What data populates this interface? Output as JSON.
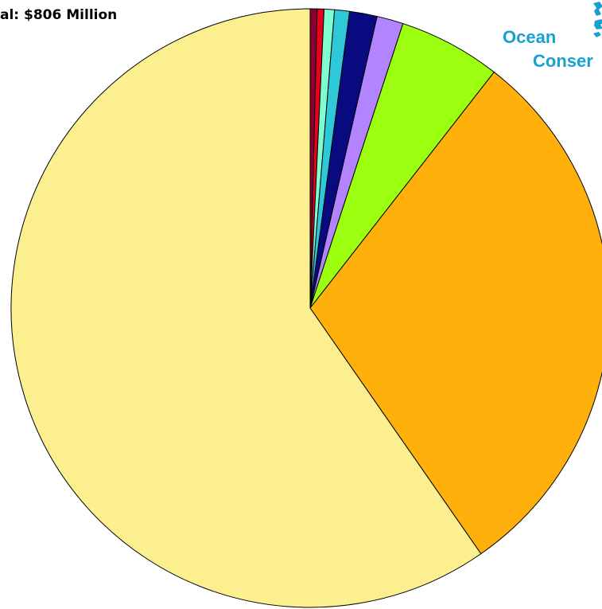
{
  "subtitle": "al: $806 Million",
  "logo": {
    "line1": "Ocean",
    "line2": "Conser",
    "color": "#1aa0d0"
  },
  "chart_data": {
    "type": "pie",
    "total_millions": 806,
    "start_angle_deg": 0,
    "direction": "clockwise",
    "slices": [
      {
        "value": 3.0,
        "color": "#8b0032"
      },
      {
        "value": 3.0,
        "color": "#e8001c"
      },
      {
        "value": 4.5,
        "color": "#7fffd0"
      },
      {
        "value": 6.5,
        "color": "#2ec8d8"
      },
      {
        "value": 12.0,
        "color": "#0a0a80"
      },
      {
        "value": 11.5,
        "color": "#b284ff"
      },
      {
        "value": 44.5,
        "color": "#9cff10"
      },
      {
        "value": 240.0,
        "color": "#ffb00a"
      },
      {
        "value": 481.0,
        "color": "#fbef8f"
      }
    ]
  }
}
